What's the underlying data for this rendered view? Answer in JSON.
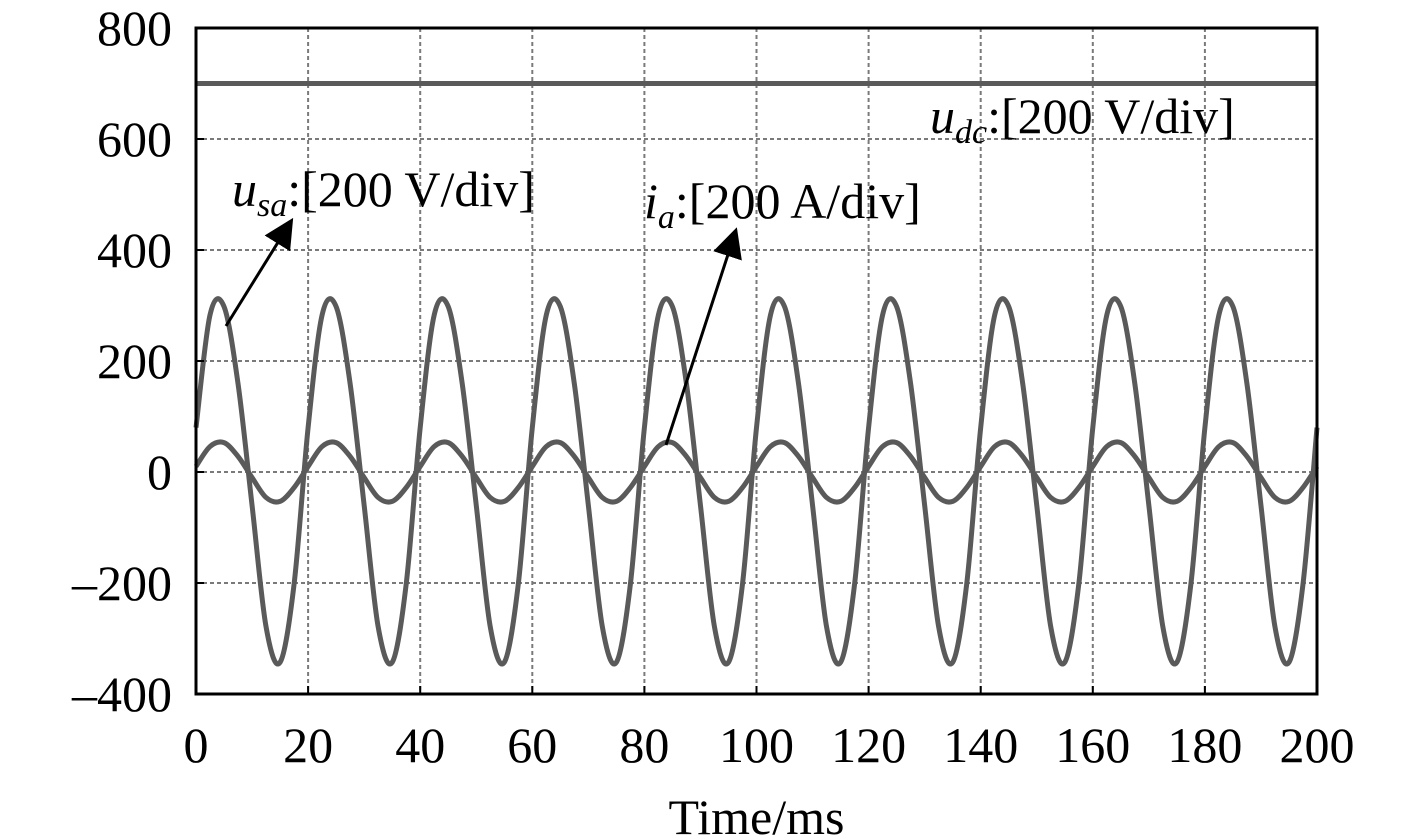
{
  "chart_data": {
    "type": "line",
    "title": "",
    "xlabel": "Time/ms",
    "ylabel": "",
    "xlim": [
      0,
      200
    ],
    "ylim": [
      -400,
      800
    ],
    "xticks": [
      "0",
      "20",
      "40",
      "60",
      "80",
      "100",
      "120",
      "140",
      "160",
      "180",
      "200"
    ],
    "yticks": [
      "800",
      "600",
      "400",
      "200",
      "0",
      "–200",
      "–400"
    ],
    "grid": true,
    "series": [
      {
        "name": "u_dc",
        "label_main": "u",
        "label_sub": "dc",
        "label_scale": ":[200 V/div]",
        "color": "#5a5a5a",
        "x": [
          0,
          200
        ],
        "y": [
          700,
          700
        ]
      },
      {
        "name": "u_sa",
        "label_main": "u",
        "label_sub": "sa",
        "label_scale": ":[200 V/div]",
        "color": "#5a5a5a",
        "x": [
          0,
          2.5,
          5,
          7.5,
          10,
          12.5,
          15,
          17.5,
          20,
          22.5,
          25,
          27.5,
          30,
          32.5,
          35,
          37.5,
          40,
          42.5,
          45,
          47.5,
          50,
          52.5,
          55,
          57.5,
          60,
          62.5,
          65,
          67.5,
          70,
          72.5,
          75,
          77.5,
          80,
          82.5,
          85,
          87.5,
          90,
          92.5,
          95,
          97.5,
          100,
          102.5,
          105,
          107.5,
          110,
          112.5,
          115,
          117.5,
          120,
          122.5,
          125,
          127.5,
          130,
          132.5,
          135,
          137.5,
          140,
          142.5,
          145,
          147.5,
          150,
          152.5,
          155,
          157.5,
          160,
          162.5,
          165,
          167.5,
          170,
          172.5,
          175,
          177.5,
          180,
          182.5,
          185,
          187.5,
          190,
          192.5,
          195,
          197.5,
          200
        ],
        "y": [
          80,
          283,
          298,
          159,
          -60,
          -279,
          -343,
          -202,
          80,
          283,
          298,
          159,
          -60,
          -279,
          -343,
          -202,
          80,
          283,
          298,
          159,
          -60,
          -279,
          -343,
          -202,
          80,
          283,
          298,
          159,
          -60,
          -279,
          -343,
          -202,
          80,
          283,
          298,
          159,
          -60,
          -279,
          -343,
          -202,
          80,
          283,
          298,
          159,
          -60,
          -279,
          -343,
          -202,
          80,
          283,
          298,
          159,
          -60,
          -279,
          -343,
          -202,
          80,
          283,
          298,
          159,
          -60,
          -279,
          -343,
          -202,
          80,
          283,
          298,
          159,
          -60,
          -279,
          -343,
          -202,
          80,
          283,
          298,
          159,
          -60,
          -279,
          -343,
          -202,
          80
        ]
      },
      {
        "name": "i_a",
        "label_main": "i",
        "label_sub": "a",
        "label_scale": ":[200 A/div]",
        "color": "#5a5a5a",
        "x": [
          0,
          2.5,
          5,
          7.5,
          10,
          12.5,
          15,
          17.5,
          20,
          22.5,
          25,
          27.5,
          30,
          32.5,
          35,
          37.5,
          40,
          42.5,
          45,
          47.5,
          50,
          52.5,
          55,
          57.5,
          60,
          62.5,
          65,
          67.5,
          70,
          72.5,
          75,
          77.5,
          80,
          82.5,
          85,
          87.5,
          90,
          92.5,
          95,
          97.5,
          100,
          102.5,
          105,
          107.5,
          110,
          112.5,
          115,
          117.5,
          120,
          122.5,
          125,
          127.5,
          130,
          132.5,
          135,
          137.5,
          140,
          142.5,
          145,
          147.5,
          150,
          152.5,
          155,
          157.5,
          160,
          162.5,
          165,
          167.5,
          170,
          172.5,
          175,
          177.5,
          180,
          182.5,
          185,
          187.5,
          190,
          192.5,
          195,
          197.5,
          200
        ],
        "y": [
          10,
          46,
          53,
          28,
          -10,
          -46,
          -53,
          -28,
          10,
          46,
          53,
          28,
          -10,
          -46,
          -53,
          -28,
          10,
          46,
          53,
          28,
          -10,
          -46,
          -53,
          -28,
          10,
          46,
          53,
          28,
          -10,
          -46,
          -53,
          -28,
          10,
          46,
          53,
          28,
          -10,
          -46,
          -53,
          -28,
          10,
          46,
          53,
          28,
          -10,
          -46,
          -53,
          -28,
          10,
          46,
          53,
          28,
          -10,
          -46,
          -53,
          -28,
          10,
          46,
          53,
          28,
          -10,
          -46,
          -53,
          -28,
          10,
          46,
          53,
          28,
          -10,
          -46,
          -53,
          -28,
          10,
          46,
          53,
          28,
          -10,
          -46,
          -53,
          -28,
          10
        ]
      }
    ],
    "annotations": [
      {
        "series": "u_sa",
        "arrow_to_x": 3,
        "arrow_to_y": 260
      },
      {
        "series": "i_a",
        "arrow_to_x": 84,
        "arrow_to_y": 45
      }
    ]
  }
}
